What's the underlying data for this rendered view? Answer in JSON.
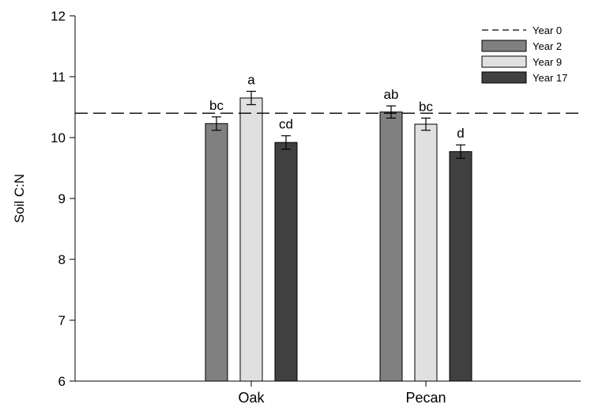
{
  "chart_data": {
    "type": "bar",
    "title": "",
    "xlabel": "",
    "ylabel": "Soil C:N",
    "ylim": [
      6,
      12
    ],
    "yticks": [
      6,
      7,
      8,
      9,
      10,
      11,
      12
    ],
    "grid": false,
    "legend_position": "top-right",
    "categories": [
      "Oak",
      "Pecan"
    ],
    "reference_line": {
      "name": "Year 0",
      "value": 10.4,
      "style": "dashed",
      "color": "#000000"
    },
    "series": [
      {
        "name": "Year 2",
        "color": "#808080",
        "values": [
          10.23,
          10.42
        ],
        "errors": [
          0.11,
          0.1
        ],
        "labels": [
          "bc",
          "ab"
        ]
      },
      {
        "name": "Year 9",
        "color": "#e0e0e0",
        "values": [
          10.65,
          10.22
        ],
        "errors": [
          0.11,
          0.1
        ],
        "labels": [
          "a",
          "bc"
        ]
      },
      {
        "name": "Year 17",
        "color": "#404040",
        "values": [
          9.92,
          9.77
        ],
        "errors": [
          0.11,
          0.11
        ],
        "labels": [
          "cd",
          "d"
        ]
      }
    ]
  }
}
